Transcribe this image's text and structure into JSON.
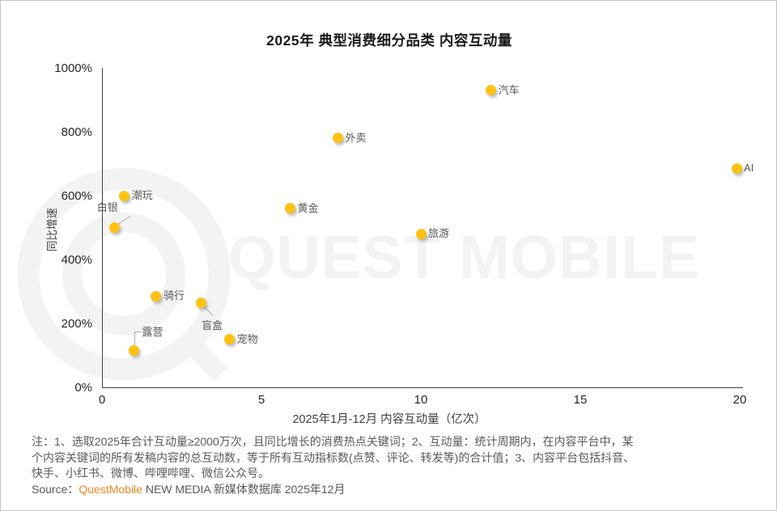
{
  "title": "2025年 典型消费细分品类 内容互动量",
  "watermark": {
    "text": "QUEST MOBILE"
  },
  "chart_data": {
    "type": "scatter",
    "title": "2025年 典型消费细分品类 内容互动量",
    "xlabel": "2025年1月-12月 内容互动量（亿次）",
    "ylabel": "同比增速",
    "xlim": [
      0,
      20
    ],
    "ylim_pct": [
      0,
      1000
    ],
    "x_tick_values": [
      0,
      5,
      10,
      15,
      20
    ],
    "x_ticks": [
      "0",
      "5",
      "10",
      "15",
      "20"
    ],
    "y_tick_values_pct": [
      0,
      200,
      400,
      600,
      800,
      1000
    ],
    "y_ticks": [
      "0%",
      "200%",
      "400%",
      "600%",
      "800%",
      "1000%"
    ],
    "grid": false,
    "legend": "none",
    "point_color": "#FFC112",
    "points": [
      {
        "label": "汽车",
        "x": 12.2,
        "y_pct": 930,
        "label_pos": "right"
      },
      {
        "label": "外卖",
        "x": 7.4,
        "y_pct": 780,
        "label_pos": "right"
      },
      {
        "label": "AI",
        "x": 19.9,
        "y_pct": 685,
        "label_pos": "right"
      },
      {
        "label": "潮玩",
        "x": 0.7,
        "y_pct": 600,
        "label_pos": "right"
      },
      {
        "label": "黄金",
        "x": 5.9,
        "y_pct": 560,
        "label_pos": "right"
      },
      {
        "label": "白银",
        "x": 0.4,
        "y_pct": 500,
        "label_pos": "above-leader"
      },
      {
        "label": "旅游",
        "x": 10.0,
        "y_pct": 480,
        "label_pos": "right"
      },
      {
        "label": "骑行",
        "x": 1.7,
        "y_pct": 285,
        "label_pos": "right"
      },
      {
        "label": "盲盒",
        "x": 3.1,
        "y_pct": 265,
        "label_pos": "below-leader"
      },
      {
        "label": "宠物",
        "x": 4.0,
        "y_pct": 150,
        "label_pos": "right"
      },
      {
        "label": "露营",
        "x": 1.0,
        "y_pct": 115,
        "label_pos": "above-elbow"
      }
    ]
  },
  "notes": {
    "line1": "注：1、选取2025年合计互动量≥2000万次，且同比增长的消费热点关键词；2、互动量：统计周期内，在内容平台中，某",
    "line2": "个内容关键词的所有发稿内容的总互动数，等于所有互动指标数(点赞、评论、转发等)的合计值；3、内容平台包括抖音、",
    "line3": "快手、小红书、微博、哔哩哔哩、微信公众号。"
  },
  "source": {
    "prefix": "Source：",
    "brand": "QuestMobile",
    "rest": " NEW MEDIA 新媒体数据库 2025年12月"
  },
  "colors": {
    "point": "#FFC112",
    "brand_orange": "#F5861F",
    "label_gray": "#595959",
    "axis_dark": "#404040",
    "watermark_gray": "#f3f3f3"
  }
}
